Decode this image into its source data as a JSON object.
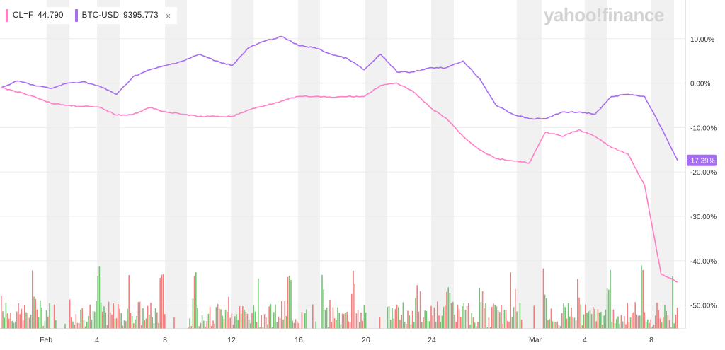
{
  "legend": [
    {
      "symbol": "CL=F",
      "value": "44.790",
      "color": "#ff7fc9",
      "closable": false
    },
    {
      "symbol": "BTC-USD",
      "value": "9395.773",
      "color": "#a66cf2",
      "closable": true
    }
  ],
  "close_glyph": "×",
  "logo_text": "yahoo!finance",
  "last_value_badge": "-17.39%",
  "colors": {
    "cl": "#ff7fc9",
    "btc": "#a66cf2",
    "vol_up": "#5cb85c",
    "vol_down": "#f06a6a",
    "band": "#f1f1f1",
    "grid": "#ececec"
  },
  "chart_data": {
    "type": "line",
    "x_tick_labels": [
      "Feb",
      "4",
      "8",
      "12",
      "16",
      "20",
      "24",
      "Mar",
      "4",
      "8"
    ],
    "y_tick_labels": [
      "10.00%",
      "0.00%",
      "-10.00%",
      "-20.00%",
      "-30.00%",
      "-40.00%",
      "-50.00%"
    ],
    "y_ticks": [
      10,
      0,
      -10,
      -20,
      -30,
      -40,
      -50
    ],
    "ylim": [
      -55,
      13
    ],
    "x": [
      "Jan 28",
      "Jan 29",
      "Jan 30",
      "Jan 31",
      "Feb 1",
      "Feb 2",
      "Feb 3",
      "Feb 4",
      "Feb 5",
      "Feb 6",
      "Feb 7",
      "Feb 8",
      "Feb 9",
      "Feb 10",
      "Feb 11",
      "Feb 12",
      "Feb 13",
      "Feb 14",
      "Feb 15",
      "Feb 16",
      "Feb 17",
      "Feb 18",
      "Feb 19",
      "Feb 20",
      "Feb 21",
      "Feb 22",
      "Feb 23",
      "Feb 24",
      "Feb 25",
      "Feb 26",
      "Feb 27",
      "Feb 28",
      "Feb 29",
      "Mar 1",
      "Mar 2",
      "Mar 3",
      "Mar 4",
      "Mar 5",
      "Mar 6",
      "Mar 7",
      "Mar 8",
      "Mar 9"
    ],
    "series": [
      {
        "name": "BTC-USD",
        "values": [
          -1,
          0.5,
          -0.5,
          -1.2,
          0,
          0.3,
          -0.8,
          -2.5,
          1.5,
          3,
          4,
          5,
          6.5,
          5,
          4,
          8,
          9.5,
          10.5,
          8.5,
          8,
          6.5,
          5.5,
          3,
          6.5,
          2.5,
          2.5,
          3.5,
          3.5,
          5,
          1,
          -5,
          -7,
          -8,
          -8,
          -6.5,
          -6.5,
          -7,
          -3,
          -2.5,
          -3,
          -10,
          -17.39
        ]
      },
      {
        "name": "CL=F",
        "values": [
          -1,
          -2,
          -3,
          -4.5,
          -5,
          -5.2,
          -5.5,
          -7.2,
          -7,
          -5.5,
          -6.5,
          -7,
          -7.5,
          -7.5,
          -7.5,
          -6,
          -5,
          -4,
          -3,
          -3,
          -3.2,
          -3,
          -3,
          -0.5,
          0,
          -2,
          -5.5,
          -8,
          -12,
          -15,
          -17,
          -17.5,
          -18,
          -11,
          -12,
          -10.5,
          -12,
          -14.5,
          -16,
          -23,
          -43,
          -44.8
        ]
      }
    ],
    "volume_note": "volume bars along the bottom, green and red"
  }
}
